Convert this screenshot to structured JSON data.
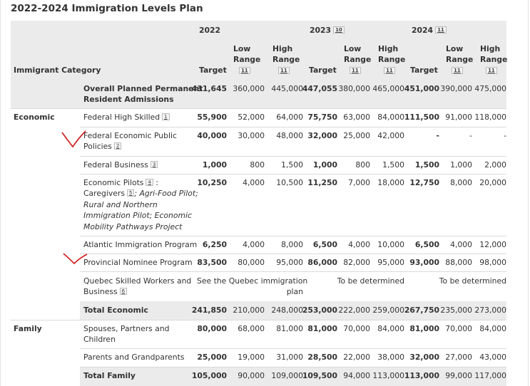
{
  "title": "2022-2024 Immigration Levels Plan",
  "header": {
    "category": "Immigrant Category",
    "years": [
      {
        "year": "2022",
        "fn": ""
      },
      {
        "year": "2023",
        "fn": "10"
      },
      {
        "year": "2024",
        "fn": "11"
      }
    ],
    "target": "Target",
    "low1": "Low",
    "low2": "Range",
    "high1": "High",
    "high2": "Range",
    "range_fn": "11"
  },
  "overall": {
    "label1": "Overall Planned Permanent",
    "label2": "Resident Admissions",
    "values": [
      "431,645",
      "360,000",
      "445,000",
      "447,055",
      "380,000",
      "465,000",
      "451,000",
      "390,000",
      "475,000"
    ]
  },
  "economic": {
    "group": "Economic",
    "rows": [
      {
        "label": "Federal High Skilled",
        "fn": "1",
        "values": [
          "55,900",
          "52,000",
          "64,000",
          "75,750",
          "63,000",
          "84,000",
          "111,500",
          "91,000",
          "118,000"
        ]
      },
      {
        "label1": "Federal Economic Public",
        "label2": "Policies",
        "fn": "2",
        "values": [
          "40,000",
          "30,000",
          "48,000",
          "32,000",
          "25,000",
          "42,000",
          "-",
          "-",
          "-"
        ]
      },
      {
        "label": "Federal Business",
        "fn": "3",
        "values": [
          "1,000",
          "800",
          "1,500",
          "1,000",
          "800",
          "1,500",
          "1,500",
          "1,000",
          "2,000"
        ]
      },
      {
        "label1": "Economic Pilots",
        "fn1": "4",
        "colon": ":",
        "label2a": "Caregivers",
        "fn2": "5",
        "label2b": "; Agri-Food Pilot;",
        "label3": "Rural and Northern",
        "label4": "Immigration Pilot; Economic",
        "label5": "Mobility Pathways Project",
        "values": [
          "10,250",
          "4,000",
          "10,500",
          "11,250",
          "7,000",
          "18,000",
          "12,750",
          "8,000",
          "20,000"
        ]
      },
      {
        "label": "Atlantic Immigration Program",
        "values": [
          "6,250",
          "4,000",
          "8,000",
          "6,500",
          "4,000",
          "10,000",
          "6,500",
          "4,000",
          "12,000"
        ]
      },
      {
        "label": "Provincial Nominee Program",
        "values": [
          "83,500",
          "80,000",
          "95,000",
          "86,000",
          "82,000",
          "95,000",
          "93,000",
          "88,000",
          "98,000"
        ]
      },
      {
        "label1": "Quebec Skilled Workers and",
        "label2": "Business",
        "fn": "6",
        "note1a": "See the Quebec immigration",
        "note1b": "plan",
        "note2": "To be determined",
        "note3": "To be determined"
      }
    ],
    "total": {
      "label": "Total Economic",
      "values": [
        "241,850",
        "210,000",
        "248,000",
        "253,000",
        "222,000",
        "259,000",
        "267,750",
        "235,000",
        "273,000"
      ]
    }
  },
  "family": {
    "group": "Family",
    "rows": [
      {
        "label1": "Spouses, Partners and",
        "label2": "Children",
        "values": [
          "80,000",
          "68,000",
          "81,000",
          "81,000",
          "70,000",
          "84,000",
          "81,000",
          "70,000",
          "84,000"
        ]
      },
      {
        "label": "Parents and Grandparents",
        "values": [
          "25,000",
          "19,000",
          "31,000",
          "28,500",
          "22,000",
          "38,000",
          "32,000",
          "27,000",
          "43,000"
        ]
      }
    ],
    "total": {
      "label": "Total Family",
      "values": [
        "105,000",
        "90,000",
        "109,000",
        "109,500",
        "94,000",
        "113,000",
        "113,000",
        "99,000",
        "117,000"
      ]
    }
  },
  "colors": {
    "header_bg": "#ebebeb",
    "check_mark": "#d11a1a"
  }
}
